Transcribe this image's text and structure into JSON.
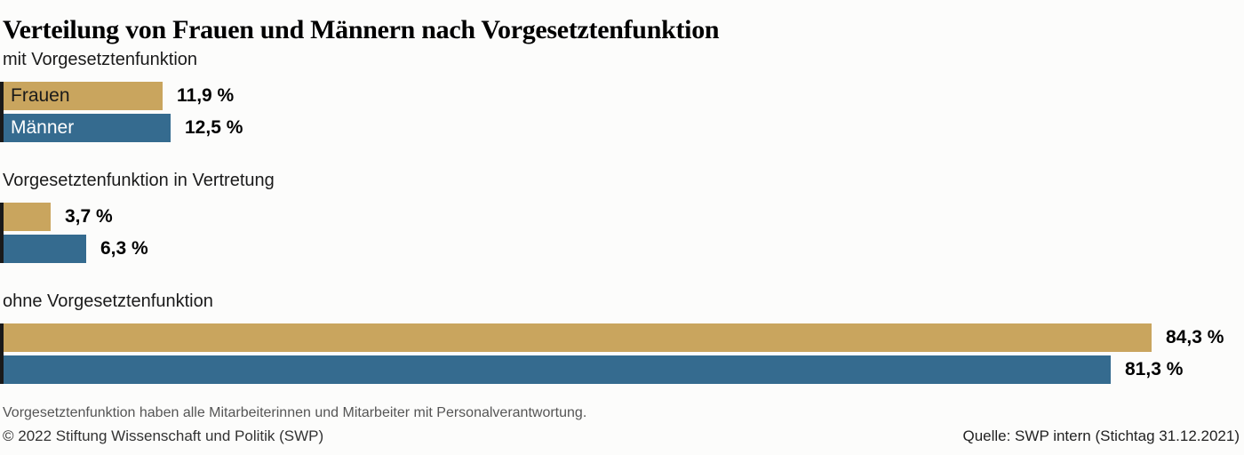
{
  "title": "Verteilung von Frauen und Männern nach Vorgesetztenfunktion",
  "colors": {
    "frauen_bar": "#c9a55e",
    "maenner_bar": "#356b8f",
    "axis_tick": "#1a1a1a",
    "frauen_label_text": "#1a1a1a",
    "maenner_label_text": "#ffffff"
  },
  "chart_data": {
    "type": "bar",
    "orientation": "horizontal",
    "unit": "%",
    "xlim": [
      0,
      91
    ],
    "grid": false,
    "legend_position": "inside-first-bars",
    "series": [
      {
        "name": "Frauen",
        "color": "#c9a55e",
        "values": [
          11.9,
          3.7,
          84.3
        ]
      },
      {
        "name": "Männer",
        "color": "#356b8f",
        "values": [
          12.5,
          6.3,
          81.3
        ]
      }
    ],
    "groups": [
      {
        "label": "mit Vorgesetztenfunktion",
        "bars": [
          {
            "series": "Frauen",
            "value": 11.9,
            "display": "11,9 %"
          },
          {
            "series": "Männer",
            "value": 12.5,
            "display": "12,5 %"
          }
        ]
      },
      {
        "label": "Vorgesetztenfunktion in Vertretung",
        "bars": [
          {
            "series": "Frauen",
            "value": 3.7,
            "display": "3,7 %"
          },
          {
            "series": "Männer",
            "value": 6.3,
            "display": "6,3 %"
          }
        ]
      },
      {
        "label": "ohne Vorgesetztenfunktion",
        "bars": [
          {
            "series": "Frauen",
            "value": 84.3,
            "display": "84,3 %"
          },
          {
            "series": "Männer",
            "value": 81.3,
            "display": "81,3 %"
          }
        ]
      }
    ]
  },
  "footer": {
    "note": "Vorgesetztenfunktion haben alle Mitarbeiterinnen und Mitarbeiter mit Personalverantwortung.",
    "copyright": "© 2022 Stiftung Wissenschaft und Politik (SWP)",
    "source": "Quelle: SWP intern (Stichtag 31.12.2021)"
  }
}
